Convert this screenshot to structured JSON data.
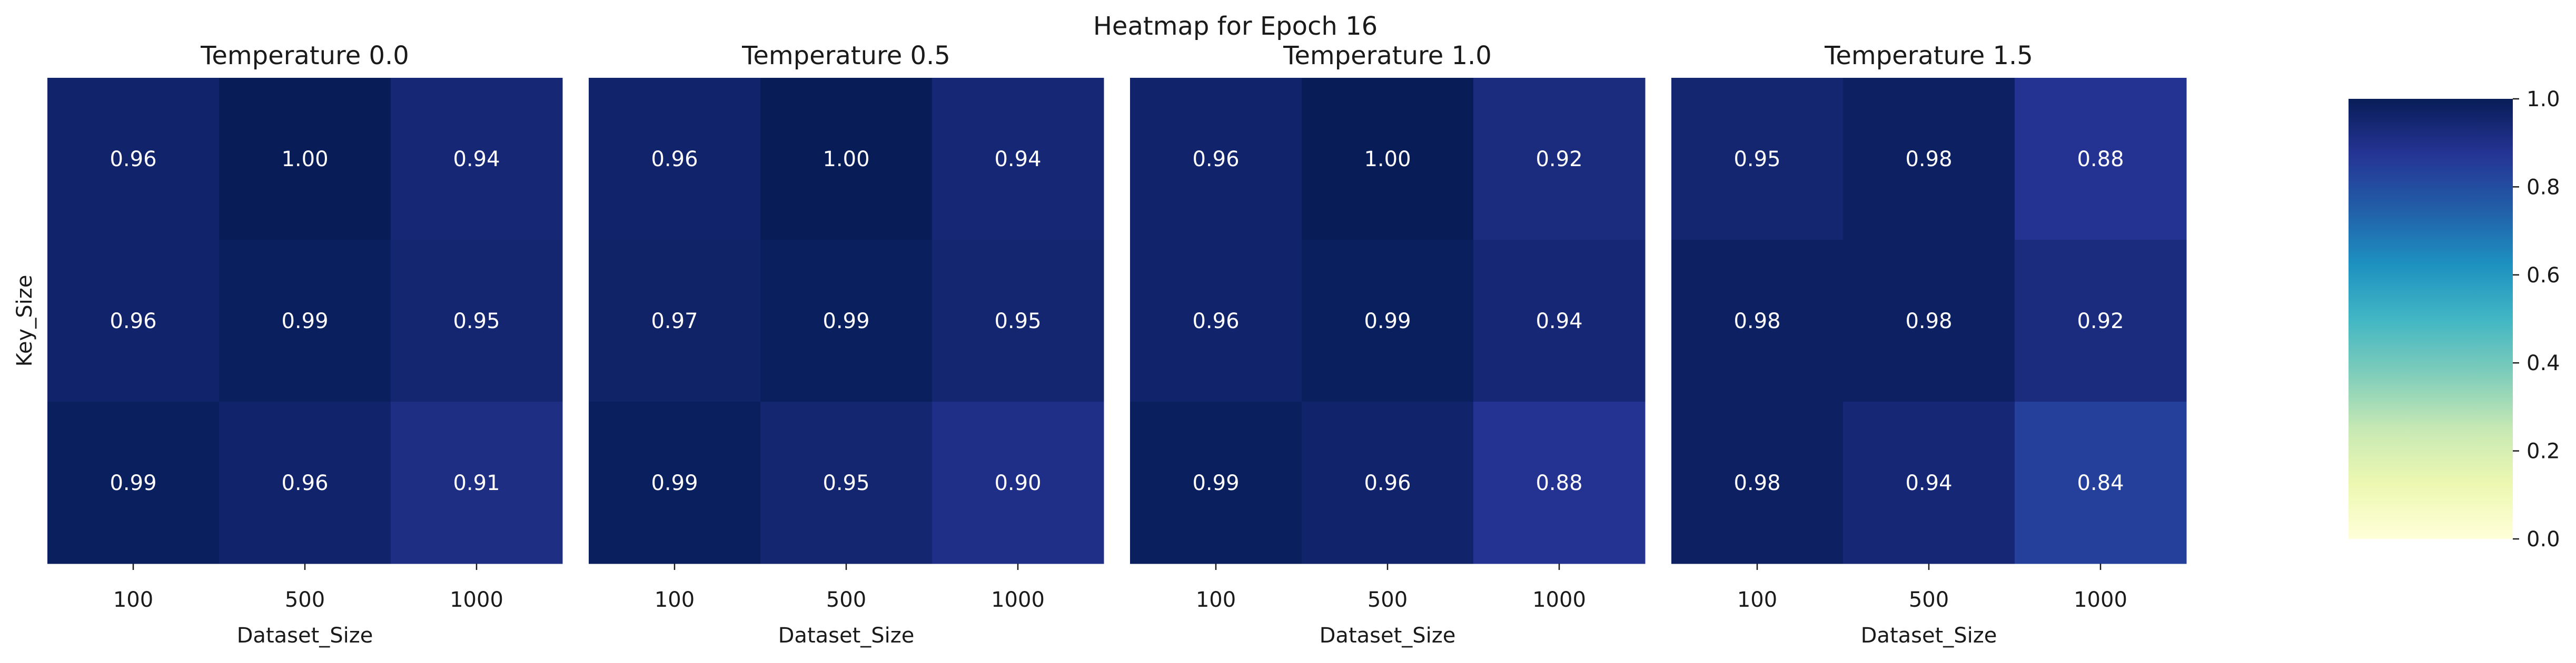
{
  "chart_data": {
    "type": "heatmap",
    "title": "Heatmap for Epoch 16",
    "xlabel": "Dataset_Size",
    "ylabel": "Key_Size",
    "x_categories": [
      "100",
      "500",
      "1000"
    ],
    "y_categories": [
      "",
      "",
      ""
    ],
    "value_format": "0.00",
    "colormap": "YlGnBu",
    "colormap_stops": [
      "#ffffd9",
      "#edf8b1",
      "#c7e9b4",
      "#7fcdbb",
      "#41b6c4",
      "#1d91c0",
      "#225ea8",
      "#253494",
      "#081d58"
    ],
    "colorbar": {
      "range": [
        0.0,
        1.0
      ],
      "ticks": [
        0.0,
        0.2,
        0.4,
        0.6,
        0.8,
        1.0
      ],
      "tick_labels": [
        "0.0",
        "0.2",
        "0.4",
        "0.6",
        "0.8",
        "1.0"
      ]
    },
    "panels": [
      {
        "title": "Temperature 0.0",
        "values": [
          [
            0.96,
            1.0,
            0.94
          ],
          [
            0.96,
            0.99,
            0.95
          ],
          [
            0.99,
            0.96,
            0.91
          ]
        ],
        "labels": [
          [
            "0.96",
            "1.00",
            "0.94"
          ],
          [
            "0.96",
            "0.99",
            "0.95"
          ],
          [
            "0.99",
            "0.96",
            "0.91"
          ]
        ]
      },
      {
        "title": "Temperature 0.5",
        "values": [
          [
            0.96,
            1.0,
            0.94
          ],
          [
            0.97,
            0.99,
            0.95
          ],
          [
            0.99,
            0.95,
            0.9
          ]
        ],
        "labels": [
          [
            "0.96",
            "1.00",
            "0.94"
          ],
          [
            "0.97",
            "0.99",
            "0.95"
          ],
          [
            "0.99",
            "0.95",
            "0.90"
          ]
        ]
      },
      {
        "title": "Temperature 1.0",
        "values": [
          [
            0.96,
            1.0,
            0.92
          ],
          [
            0.96,
            0.99,
            0.94
          ],
          [
            0.99,
            0.96,
            0.88
          ]
        ],
        "labels": [
          [
            "0.96",
            "1.00",
            "0.92"
          ],
          [
            "0.96",
            "0.99",
            "0.94"
          ],
          [
            "0.99",
            "0.96",
            "0.88"
          ]
        ]
      },
      {
        "title": "Temperature 1.5",
        "values": [
          [
            0.95,
            0.98,
            0.88
          ],
          [
            0.98,
            0.98,
            0.92
          ],
          [
            0.98,
            0.94,
            0.84
          ]
        ],
        "labels": [
          [
            "0.95",
            "0.98",
            "0.88"
          ],
          [
            "0.98",
            "0.98",
            "0.92"
          ],
          [
            "0.98",
            "0.94",
            "0.84"
          ]
        ]
      }
    ]
  }
}
